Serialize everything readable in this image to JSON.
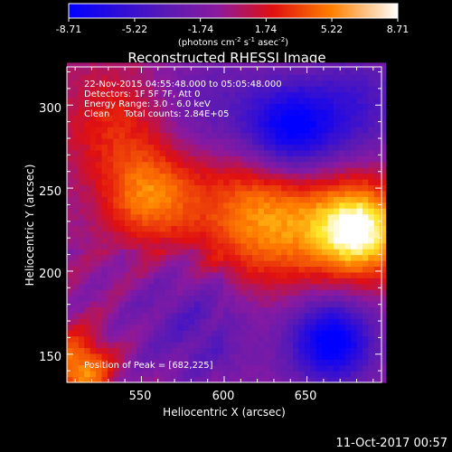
{
  "colorbar": {
    "tick_labels": [
      "-8.71",
      "-5.22",
      "-1.74",
      "1.74",
      "5.22",
      "8.71"
    ],
    "tick_values": [
      -8.71,
      -5.22,
      -1.74,
      1.74,
      5.22,
      8.71
    ],
    "range": [
      -8.71,
      8.71
    ],
    "unit_prefix": "(photons cm",
    "unit_exp1": "-2",
    "unit_mid1": " s",
    "unit_exp2": "-1",
    "unit_mid2": " asec",
    "unit_exp3": "-2",
    "unit_suffix": ")",
    "colors": [
      "#0000ff",
      "#5a1ab4",
      "#8a1aa0",
      "#e01010",
      "#ff8000",
      "#ffffff"
    ]
  },
  "chart_data": {
    "type": "heatmap",
    "title": "Reconstructed RHESSI Image",
    "xlabel": "Heliocentric X (arcsec)",
    "ylabel": "Heliocentric Y (arcsec)",
    "xlim": [
      505,
      695
    ],
    "ylim": [
      133,
      323
    ],
    "x_ticks": [
      550,
      600,
      650
    ],
    "y_ticks": [
      150,
      200,
      250,
      300
    ],
    "x_tick_labels": [
      "550",
      "600",
      "650"
    ],
    "y_tick_labels": [
      "150",
      "200",
      "250",
      "300"
    ],
    "annotations": [
      "22-Nov-2015 04:55:48.000 to 05:05:48.000",
      "Detectors: 1F 5F 7F, Att 0",
      "Energy Range: 3.0 - 6.0 keV",
      "Clean     Total counts: 2.84E+05"
    ],
    "peak_label": "Position of Peak = [682,225]",
    "peak": [
      682,
      225
    ],
    "value_range": [
      -8.71,
      8.71
    ],
    "sources": [
      {
        "x": 682,
        "y": 225,
        "amplitude": 9.2,
        "sigma": 20
      },
      {
        "x": 625,
        "y": 232,
        "amplitude": 6.5,
        "sigma": 30
      },
      {
        "x": 555,
        "y": 245,
        "amplitude": 5.5,
        "sigma": 20
      },
      {
        "x": 535,
        "y": 290,
        "amplitude": 3.2,
        "sigma": 24
      },
      {
        "x": 512,
        "y": 142,
        "amplitude": 6.5,
        "sigma": 14
      },
      {
        "x": 640,
        "y": 285,
        "amplitude": -8.5,
        "sigma": 20
      },
      {
        "x": 680,
        "y": 300,
        "amplitude": -4.0,
        "sigma": 22
      },
      {
        "x": 665,
        "y": 158,
        "amplitude": -8.7,
        "sigma": 18
      },
      {
        "x": 585,
        "y": 168,
        "amplitude": -3.2,
        "sigma": 28
      },
      {
        "x": 590,
        "y": 300,
        "amplitude": -2.8,
        "sigma": 24
      }
    ]
  },
  "timestamp": "11-Oct-2017 00:57"
}
